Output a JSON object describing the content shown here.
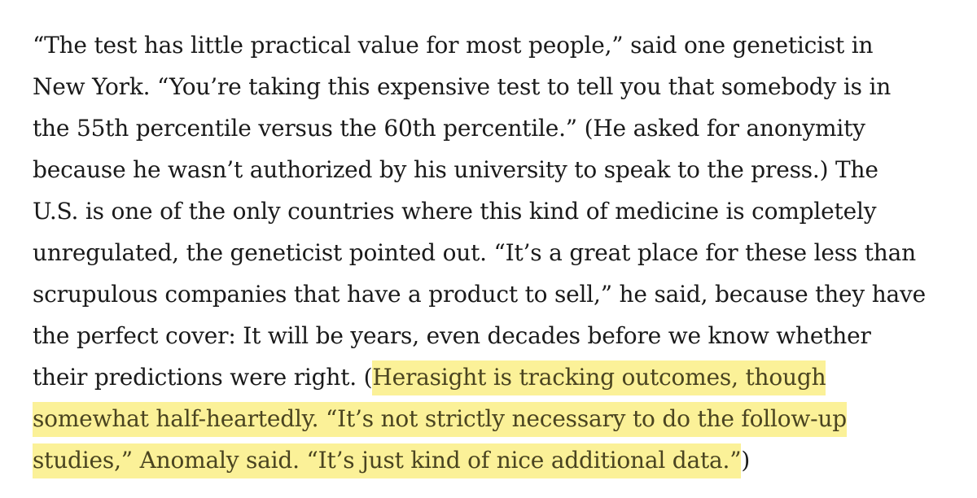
{
  "article": {
    "lines": [
      {
        "text": "“The test has little practical value for most people,” said one geneticist in"
      },
      {
        "text": "New York. “You’re taking this expensive test to tell you that somebody is in"
      },
      {
        "text": "the 55th percentile versus the 60th percentile.” (He asked for anonymity"
      },
      {
        "text": "because he wasn’t authorized by his university to speak to the press.) The"
      },
      {
        "text": "U.S. is one of the only countries where this kind of medicine is completely"
      },
      {
        "text": "unregulated, the geneticist pointed out. “It’s a great place for these less than"
      },
      {
        "text": "scrupulous companies that have a product to sell,” he said, because they have"
      },
      {
        "text": "the perfect cover: It will be years, even decades before we know whether"
      },
      {
        "before": "their predictions were right. (",
        "highlight": "Herasight is tracking outcomes, though"
      },
      {
        "highlight": "somewhat half-heartedly. “It’s not strictly necessary to do the follow-up"
      },
      {
        "highlight": "studies,” Anomaly said. “It’s just kind of nice additional data.”",
        "after": ")"
      }
    ]
  },
  "colors": {
    "text": "#1a1a1a",
    "highlight_background": "#fbf198",
    "highlight_text": "#4a4420"
  }
}
